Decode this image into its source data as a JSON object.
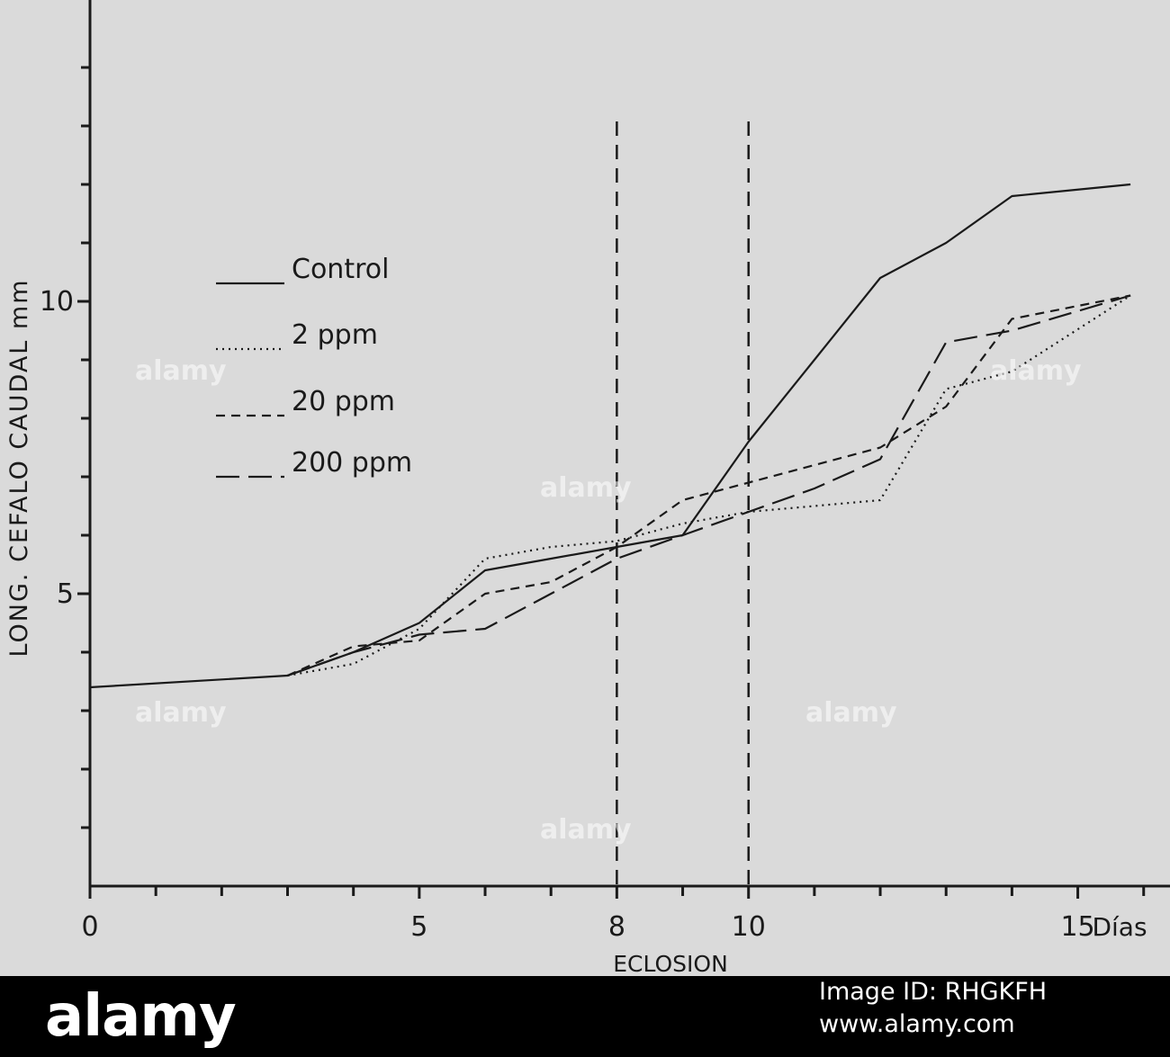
{
  "chart_data": {
    "type": "line",
    "xlabel": "ECLOSION",
    "ylabel": "LONG. CEFALO CAUDAL mm",
    "x_unit_label": "Días",
    "xlim": [
      0,
      16.4
    ],
    "ylim": [
      0,
      15
    ],
    "x_tick_labels": [
      {
        "x": 0,
        "label": "0"
      },
      {
        "x": 5,
        "label": "5"
      },
      {
        "x": 8,
        "label": "8"
      },
      {
        "x": 10,
        "label": "10"
      },
      {
        "x": 15,
        "label": "15"
      }
    ],
    "x_minor_ticks": [
      1,
      2,
      3,
      4,
      6,
      7,
      9,
      11,
      12,
      13,
      14,
      16
    ],
    "y_tick_labels": [
      {
        "y": 5,
        "label": "5"
      },
      {
        "y": 10,
        "label": "10"
      }
    ],
    "y_minor_ticks": [
      1,
      2,
      3,
      4,
      6,
      7,
      8,
      9,
      11,
      12,
      13,
      14
    ],
    "vertical_lines": [
      8,
      10
    ],
    "legend_position": "upper-left",
    "series": [
      {
        "name": "Control",
        "style": "solid",
        "points": [
          [
            0,
            3.4
          ],
          [
            3,
            3.6
          ],
          [
            4,
            4.0
          ],
          [
            5,
            4.5
          ],
          [
            6,
            5.4
          ],
          [
            7,
            5.6
          ],
          [
            8,
            5.8
          ],
          [
            9,
            6.0
          ],
          [
            10,
            7.6
          ],
          [
            11,
            9.0
          ],
          [
            12,
            10.4
          ],
          [
            13,
            11.0
          ],
          [
            14,
            11.8
          ],
          [
            15.8,
            12.0
          ]
        ]
      },
      {
        "name": "2 ppm",
        "style": "dotted",
        "points": [
          [
            3,
            3.6
          ],
          [
            4,
            3.8
          ],
          [
            5,
            4.4
          ],
          [
            6,
            5.6
          ],
          [
            7,
            5.8
          ],
          [
            8,
            5.9
          ],
          [
            9,
            6.2
          ],
          [
            10,
            6.4
          ],
          [
            11,
            6.5
          ],
          [
            12,
            6.6
          ],
          [
            13,
            8.5
          ],
          [
            14,
            8.8
          ],
          [
            15.8,
            10.1
          ]
        ]
      },
      {
        "name": "20 ppm",
        "style": "dashed",
        "points": [
          [
            3,
            3.6
          ],
          [
            4,
            4.1
          ],
          [
            5,
            4.2
          ],
          [
            6,
            5.0
          ],
          [
            7,
            5.2
          ],
          [
            8,
            5.8
          ],
          [
            9,
            6.6
          ],
          [
            10,
            6.9
          ],
          [
            11,
            7.2
          ],
          [
            12,
            7.5
          ],
          [
            13,
            8.2
          ],
          [
            14,
            9.7
          ],
          [
            15.8,
            10.1
          ]
        ]
      },
      {
        "name": "200 ppm",
        "style": "longdash",
        "points": [
          [
            3,
            3.6
          ],
          [
            4,
            4.0
          ],
          [
            5,
            4.3
          ],
          [
            6,
            4.4
          ],
          [
            7,
            5.0
          ],
          [
            8,
            5.6
          ],
          [
            9,
            6.0
          ],
          [
            10,
            6.4
          ],
          [
            11,
            6.8
          ],
          [
            12,
            7.3
          ],
          [
            13,
            9.3
          ],
          [
            14,
            9.5
          ],
          [
            15.8,
            10.1
          ]
        ]
      }
    ]
  },
  "footer": {
    "logo": "alamy",
    "image_id": "Image ID: RHGKFH",
    "site": "www.alamy.com",
    "watermark": "alamy"
  }
}
